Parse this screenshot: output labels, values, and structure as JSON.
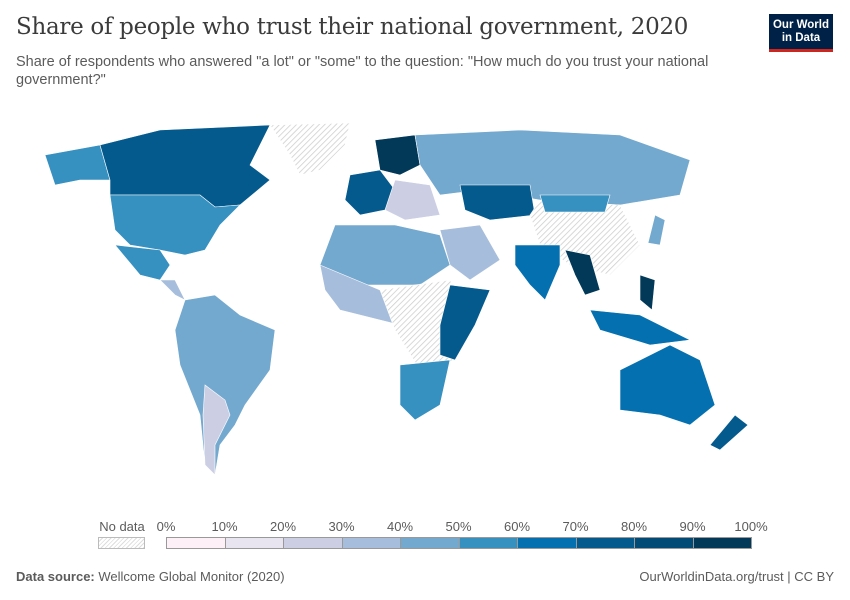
{
  "header": {
    "title": "Share of people who trust their national government, 2020",
    "subtitle": "Share of respondents who answered \"a lot\" or \"some\" to the question: \"How much do you trust your national government?\"",
    "logo": "Our World in Data"
  },
  "legend": {
    "no_data_label": "No data",
    "ticks": [
      "0%",
      "10%",
      "20%",
      "30%",
      "40%",
      "50%",
      "60%",
      "70%",
      "80%",
      "90%",
      "100%"
    ],
    "colors": [
      "#fef0f7",
      "#e8e4f0",
      "#cccfe4",
      "#a6bddb",
      "#74a9cf",
      "#3690c0",
      "#0570b0",
      "#045a8d",
      "#034b77",
      "#023858"
    ],
    "no_data_color": "#dddddd"
  },
  "footer": {
    "source_label": "Data source:",
    "source": "Wellcome Global Monitor (2020)",
    "link": "OurWorldinData.org/trust | CC BY"
  }
}
